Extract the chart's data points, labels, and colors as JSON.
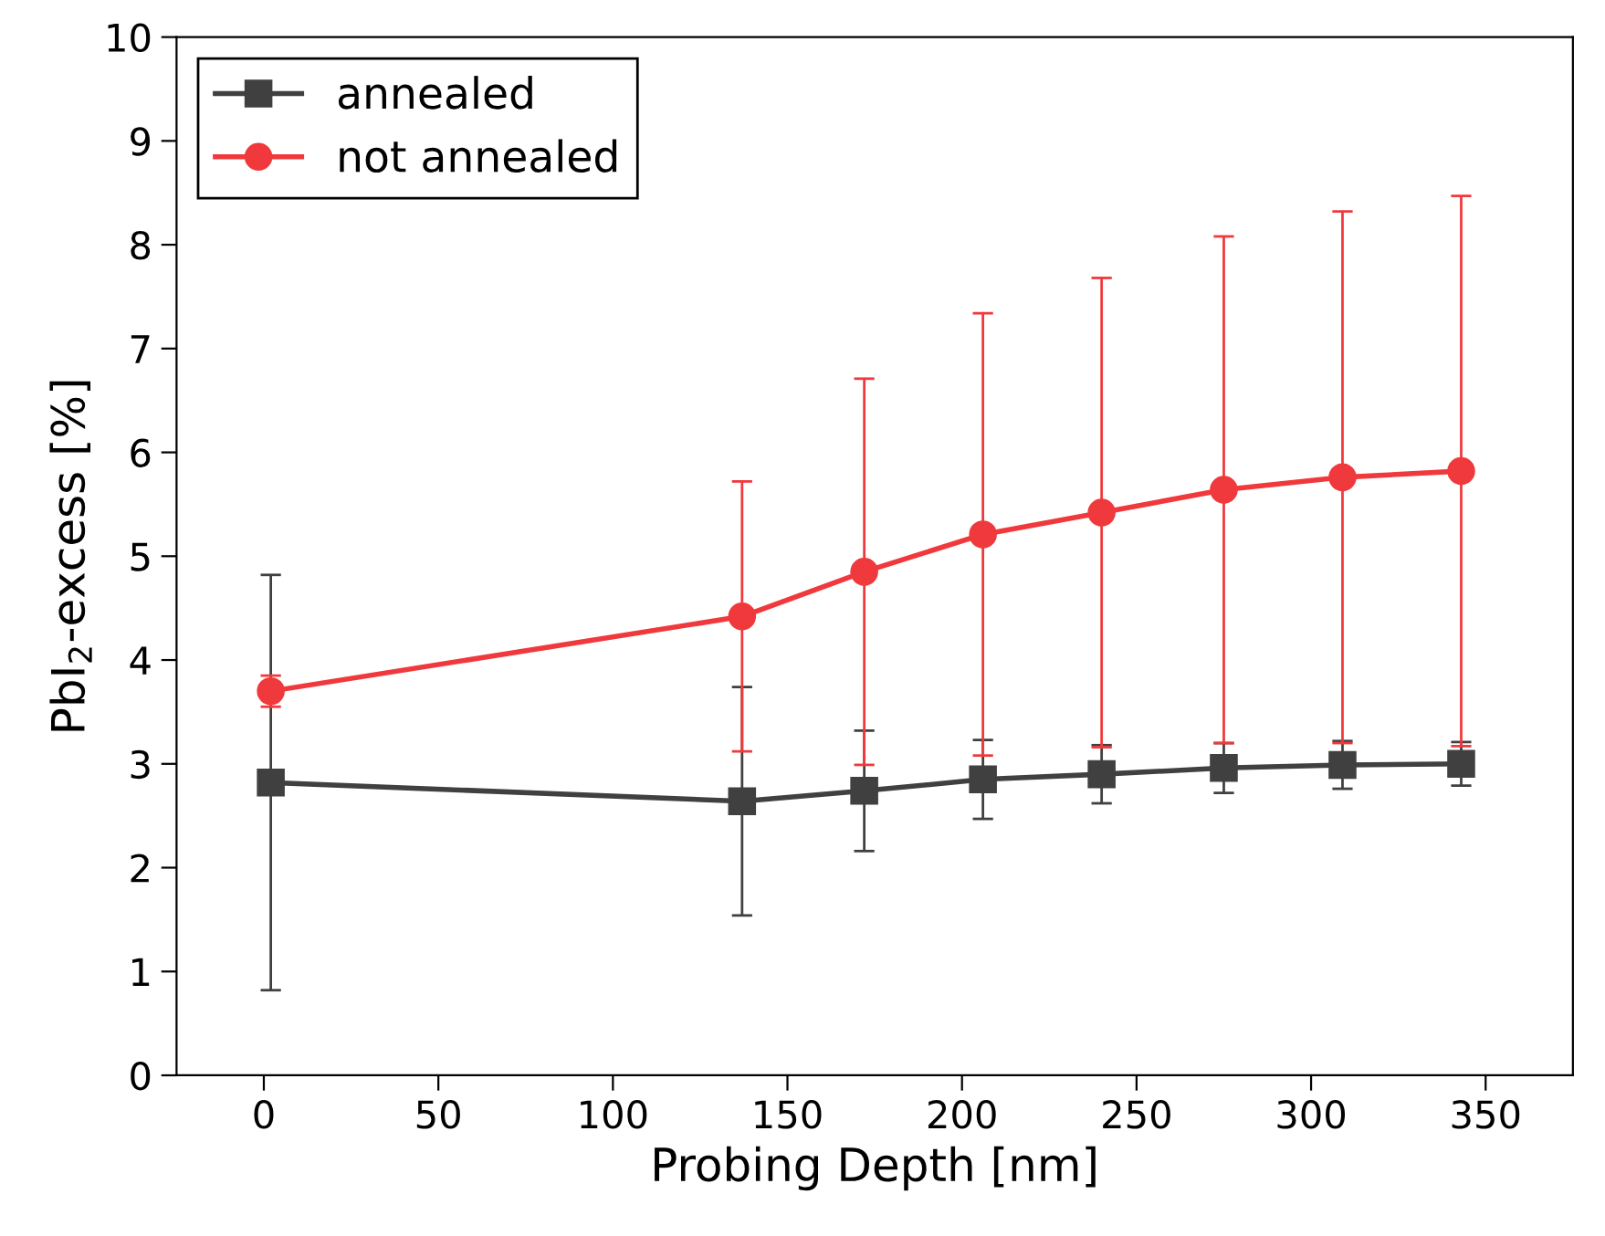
{
  "chart_data": {
    "type": "line",
    "xlabel": "Probing Depth [nm]",
    "ylabel": "PbI$_{2}$-excess [%]",
    "x": [
      2,
      137,
      172,
      206,
      240,
      275,
      309,
      343
    ],
    "xlim": [
      -25,
      375
    ],
    "xticks": [
      0,
      50,
      100,
      150,
      200,
      250,
      300,
      350
    ],
    "ylim": [
      0,
      10
    ],
    "yticks": [
      0,
      1,
      2,
      3,
      4,
      5,
      6,
      7,
      8,
      9,
      10
    ],
    "legend": "top left",
    "grid": false,
    "line_style": "solid",
    "series": [
      {
        "name": "annealed",
        "color": "#404040",
        "marker": "square",
        "values": [
          2.82,
          2.64,
          2.74,
          2.85,
          2.9,
          2.96,
          2.99,
          3.0
        ],
        "errors": [
          2.0,
          1.1,
          0.58,
          0.38,
          0.28,
          0.24,
          0.23,
          0.21
        ]
      },
      {
        "name": "not annealed",
        "color": "#f0393c",
        "marker": "circle",
        "values": [
          3.7,
          4.42,
          4.85,
          5.21,
          5.42,
          5.64,
          5.76,
          5.82
        ],
        "errors": [
          0.15,
          1.3,
          1.86,
          2.13,
          2.26,
          2.44,
          2.56,
          2.65
        ]
      }
    ]
  }
}
